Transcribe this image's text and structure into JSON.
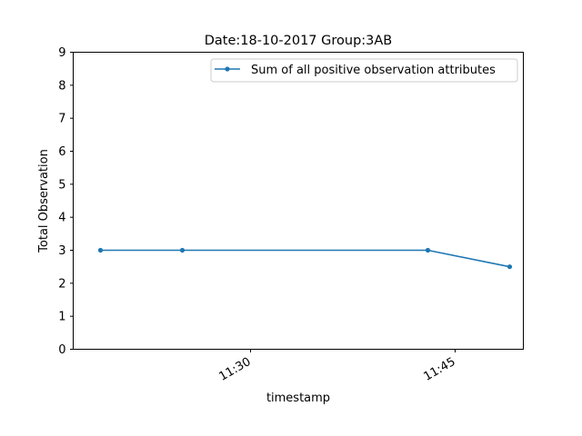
{
  "chart_data": {
    "type": "line",
    "title": "Date:18-10-2017  Group:3AB",
    "xlabel": "timestamp",
    "ylabel": "Total Observation",
    "x_tick_labels": [
      "11:30",
      "11:45"
    ],
    "x_tick_values": [
      "11:30",
      "11:45"
    ],
    "xlim": [
      "11:17",
      "11:50"
    ],
    "ylim": [
      0,
      9
    ],
    "y_ticks": [
      0,
      1,
      2,
      3,
      4,
      5,
      6,
      7,
      8,
      9
    ],
    "grid": false,
    "legend_position": "upper right",
    "series": [
      {
        "name": "Sum of all positive observation attributes",
        "color": "#1f77b4",
        "marker": "circle",
        "x": [
          "11:19",
          "11:25",
          "11:43",
          "11:49"
        ],
        "y": [
          3,
          3,
          3,
          2.5
        ]
      }
    ]
  }
}
